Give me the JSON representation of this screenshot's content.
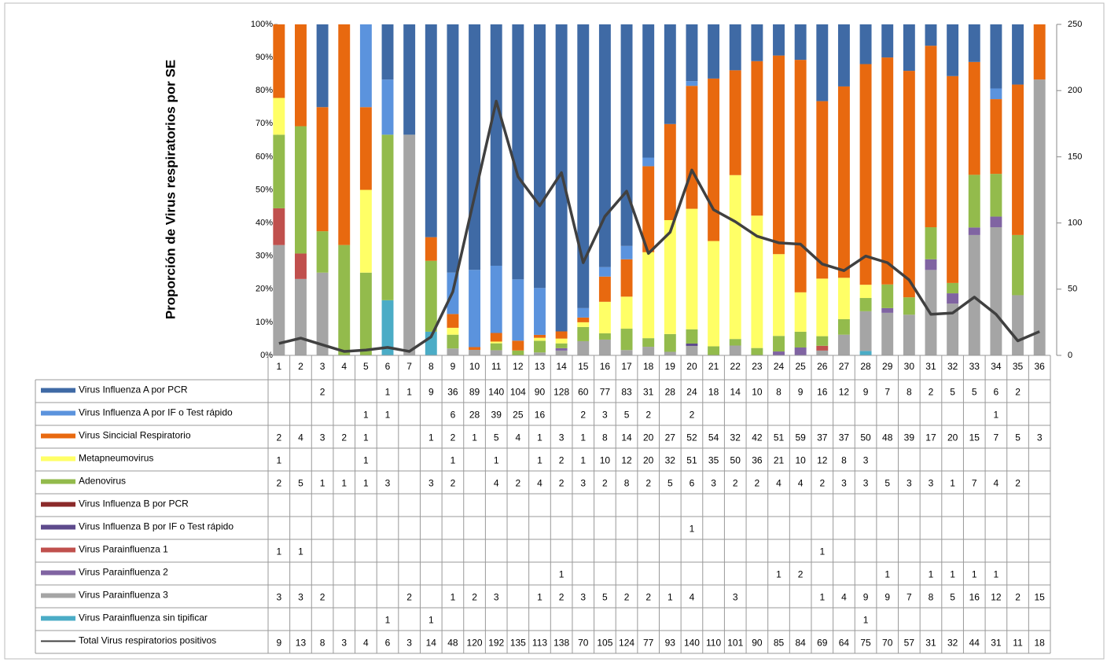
{
  "chart_data": {
    "type": "stacked_percent_bar",
    "y_axis_label": "Proporción de Virus respiratorios por SE",
    "categories": [
      "1",
      "2",
      "3",
      "4",
      "5",
      "6",
      "7",
      "8",
      "9",
      "10",
      "11",
      "12",
      "13",
      "14",
      "15",
      "16",
      "17",
      "18",
      "19",
      "20",
      "21",
      "22",
      "23",
      "24",
      "25",
      "26",
      "27",
      "28",
      "29",
      "30",
      "31",
      "32",
      "33",
      "34",
      "35",
      "36"
    ],
    "ylim": [
      0,
      100
    ],
    "yticks": [
      {
        "value": 0,
        "label": "0%"
      },
      {
        "value": 10,
        "label": "10%"
      },
      {
        "value": 20,
        "label": "20%"
      },
      {
        "value": 30,
        "label": "30%"
      },
      {
        "value": 40,
        "label": "40%"
      },
      {
        "value": 50,
        "label": "50%"
      },
      {
        "value": 60,
        "label": "60%"
      },
      {
        "value": 70,
        "label": "70%"
      },
      {
        "value": 80,
        "label": "80%"
      },
      {
        "value": 90,
        "label": "90%"
      },
      {
        "value": 100,
        "label": "100%"
      }
    ],
    "y2lim": [
      0,
      250
    ],
    "y2ticks": [
      0,
      50,
      100,
      150,
      200,
      250
    ],
    "series": [
      {
        "name": "Virus Influenza A por PCR",
        "color": "#3f6aa5",
        "values": [
          null,
          null,
          2,
          null,
          null,
          1,
          1,
          9,
          36,
          89,
          140,
          104,
          90,
          128,
          60,
          77,
          83,
          31,
          28,
          24,
          18,
          14,
          10,
          8,
          9,
          16,
          12,
          9,
          7,
          8,
          2,
          5,
          5,
          6,
          2,
          null
        ]
      },
      {
        "name": "Virus Influenza A por IF o Test rápido",
        "color": "#5b93dd",
        "values": [
          null,
          null,
          null,
          null,
          1,
          1,
          null,
          null,
          6,
          28,
          39,
          25,
          16,
          null,
          2,
          3,
          5,
          2,
          null,
          2,
          null,
          null,
          null,
          null,
          null,
          null,
          null,
          null,
          null,
          null,
          null,
          null,
          null,
          1,
          null,
          null
        ]
      },
      {
        "name": "Virus Sincicial Respiratorio",
        "color": "#e8690f",
        "values": [
          2,
          4,
          3,
          2,
          1,
          null,
          null,
          1,
          2,
          1,
          5,
          4,
          1,
          3,
          1,
          8,
          14,
          20,
          27,
          52,
          54,
          32,
          42,
          51,
          59,
          37,
          37,
          50,
          48,
          39,
          17,
          20,
          15,
          7,
          5,
          3
        ]
      },
      {
        "name": "Metapneumovirus",
        "color": "#ffff66",
        "values": [
          1,
          null,
          null,
          null,
          1,
          null,
          null,
          null,
          1,
          null,
          1,
          null,
          1,
          2,
          1,
          10,
          12,
          20,
          32,
          51,
          35,
          50,
          36,
          21,
          10,
          12,
          8,
          3,
          null,
          null,
          null,
          null,
          null,
          null,
          null,
          null
        ]
      },
      {
        "name": "Adenovirus",
        "color": "#93bb4c",
        "values": [
          2,
          5,
          1,
          1,
          1,
          3,
          null,
          3,
          2,
          null,
          4,
          2,
          4,
          2,
          3,
          2,
          8,
          2,
          5,
          6,
          3,
          2,
          2,
          4,
          4,
          2,
          3,
          3,
          5,
          3,
          3,
          1,
          7,
          4,
          2,
          null
        ]
      },
      {
        "name": "Virus Influenza B por PCR",
        "color": "#8b2a2a",
        "values": [
          null,
          null,
          null,
          null,
          null,
          null,
          null,
          null,
          null,
          null,
          null,
          null,
          null,
          null,
          null,
          null,
          null,
          null,
          null,
          null,
          null,
          null,
          null,
          null,
          null,
          null,
          null,
          null,
          null,
          null,
          null,
          null,
          null,
          null,
          null,
          null
        ]
      },
      {
        "name": "Virus Influenza B por IF o Test rápido",
        "color": "#5e4a8c",
        "values": [
          null,
          null,
          null,
          null,
          null,
          null,
          null,
          null,
          null,
          null,
          null,
          null,
          null,
          null,
          null,
          null,
          null,
          null,
          null,
          1,
          null,
          null,
          null,
          null,
          null,
          null,
          null,
          null,
          null,
          null,
          null,
          null,
          null,
          null,
          null,
          null
        ]
      },
      {
        "name": "Virus Parainfluenza 1",
        "color": "#c0504d",
        "values": [
          1,
          1,
          null,
          null,
          null,
          null,
          null,
          null,
          null,
          null,
          null,
          null,
          null,
          null,
          null,
          null,
          null,
          null,
          null,
          null,
          null,
          null,
          null,
          null,
          null,
          1,
          null,
          null,
          null,
          null,
          null,
          null,
          null,
          null,
          null,
          null
        ]
      },
      {
        "name": "Virus Parainfluenza 2",
        "color": "#8064a2",
        "values": [
          null,
          null,
          null,
          null,
          null,
          null,
          null,
          null,
          null,
          null,
          null,
          null,
          null,
          1,
          null,
          null,
          null,
          null,
          null,
          null,
          null,
          null,
          null,
          1,
          2,
          null,
          null,
          null,
          1,
          null,
          1,
          1,
          1,
          1,
          null,
          null
        ]
      },
      {
        "name": "Virus Parainfluenza 3",
        "color": "#a5a5a5",
        "values": [
          3,
          3,
          2,
          null,
          null,
          null,
          2,
          null,
          1,
          2,
          3,
          null,
          1,
          2,
          3,
          5,
          2,
          2,
          1,
          4,
          null,
          3,
          null,
          null,
          null,
          1,
          4,
          9,
          9,
          7,
          8,
          5,
          16,
          12,
          2,
          15
        ]
      },
      {
        "name": "Virus Parainfluenza sin tipificar",
        "color": "#4bacc6",
        "values": [
          null,
          null,
          null,
          null,
          null,
          1,
          null,
          1,
          null,
          null,
          null,
          null,
          null,
          null,
          null,
          null,
          null,
          null,
          null,
          null,
          null,
          null,
          null,
          null,
          null,
          null,
          null,
          1,
          null,
          null,
          null,
          null,
          null,
          null,
          null,
          null
        ]
      },
      {
        "name": "Total Virus respiratorios positivos",
        "color": "#404040",
        "axis": "y2",
        "values": [
          9,
          13,
          8,
          3,
          4,
          6,
          3,
          14,
          48,
          120,
          192,
          135,
          113,
          138,
          70,
          105,
          124,
          77,
          93,
          140,
          110,
          101,
          90,
          85,
          84,
          69,
          64,
          75,
          70,
          57,
          31,
          32,
          44,
          31,
          11,
          18
        ]
      }
    ]
  }
}
